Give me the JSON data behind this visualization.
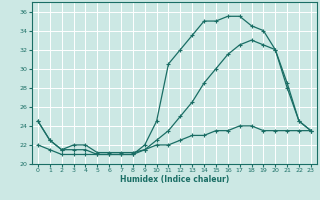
{
  "xlabel": "Humidex (Indice chaleur)",
  "bg_color": "#cce8e4",
  "line_color": "#1a6e65",
  "grid_color": "#ffffff",
  "xlim": [
    -0.5,
    23.5
  ],
  "ylim": [
    20,
    37
  ],
  "yticks": [
    20,
    22,
    24,
    26,
    28,
    30,
    32,
    34,
    36
  ],
  "xticks": [
    0,
    1,
    2,
    3,
    4,
    5,
    6,
    7,
    8,
    9,
    10,
    11,
    12,
    13,
    14,
    15,
    16,
    17,
    18,
    19,
    20,
    21,
    22,
    23
  ],
  "curve1_x": [
    0,
    1,
    2,
    3,
    4,
    5,
    6,
    7,
    8,
    9,
    10,
    11,
    12,
    13,
    14,
    15,
    16,
    17,
    18,
    19,
    20,
    21,
    22,
    23
  ],
  "curve1_y": [
    24.5,
    22.5,
    21.5,
    22.0,
    22.0,
    21.2,
    21.2,
    21.2,
    21.2,
    21.5,
    22.5,
    23.5,
    25.0,
    26.5,
    28.5,
    30.0,
    31.5,
    32.5,
    33.0,
    32.5,
    32.0,
    28.5,
    24.5,
    23.5
  ],
  "curve2_x": [
    0,
    1,
    2,
    3,
    4,
    5,
    6,
    7,
    8,
    9,
    10,
    11,
    12,
    13,
    14,
    15,
    16,
    17,
    18,
    19,
    20,
    21,
    22,
    23
  ],
  "curve2_y": [
    24.5,
    22.5,
    21.5,
    21.5,
    21.5,
    21.0,
    21.0,
    21.0,
    21.0,
    22.0,
    24.5,
    30.5,
    32.0,
    33.5,
    35.0,
    35.0,
    35.5,
    35.5,
    34.5,
    34.0,
    32.0,
    28.0,
    24.5,
    23.5
  ],
  "curve3_x": [
    0,
    1,
    2,
    3,
    4,
    5,
    6,
    7,
    8,
    9,
    10,
    11,
    12,
    13,
    14,
    15,
    16,
    17,
    18,
    19,
    20,
    21,
    22,
    23
  ],
  "curve3_y": [
    22.0,
    21.5,
    21.0,
    21.0,
    21.0,
    21.0,
    21.0,
    21.0,
    21.0,
    21.5,
    22.0,
    22.0,
    22.5,
    23.0,
    23.0,
    23.5,
    23.5,
    24.0,
    24.0,
    23.5,
    23.5,
    23.5,
    23.5,
    23.5
  ]
}
